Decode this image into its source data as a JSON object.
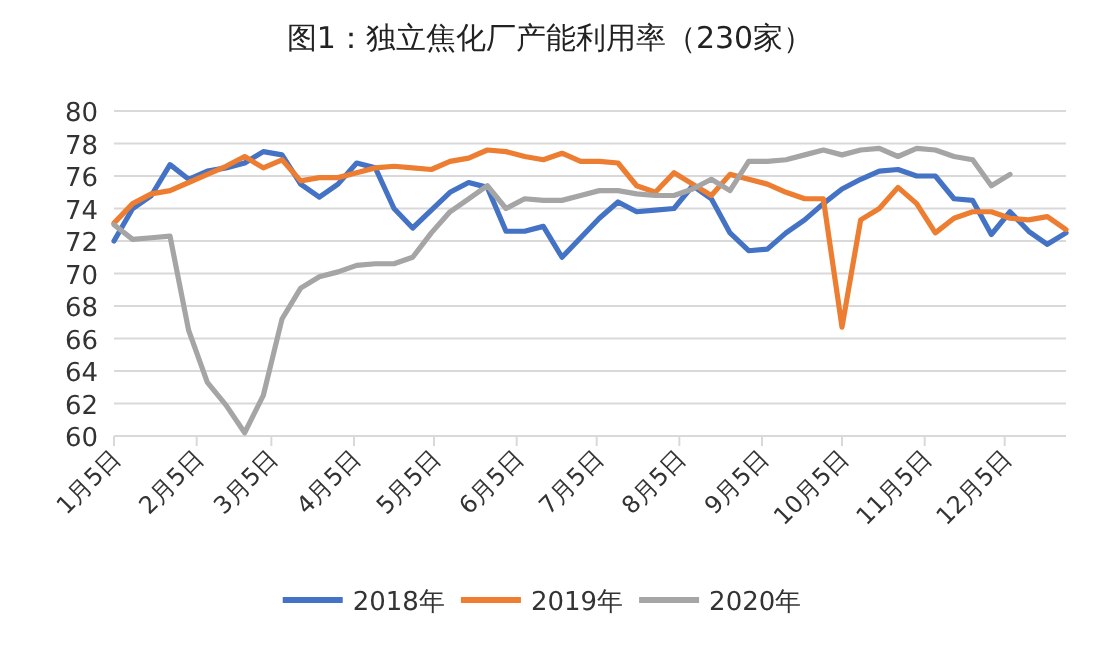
{
  "chart_data": {
    "type": "line",
    "title": "图1：独立焦化厂产能利用率（230家）",
    "x": [
      "--01-05",
      "--01-12",
      "--01-19",
      "--01-26",
      "--02-02",
      "--02-09",
      "--02-16",
      "--02-23",
      "--03-02",
      "--03-09",
      "--03-16",
      "--03-23",
      "--03-30",
      "--04-06",
      "--04-13",
      "--04-20",
      "--04-27",
      "--05-04",
      "--05-11",
      "--05-18",
      "--05-25",
      "--06-01",
      "--06-08",
      "--06-15",
      "--06-22",
      "--06-29",
      "--07-06",
      "--07-13",
      "--07-20",
      "--07-27",
      "--08-03",
      "--08-10",
      "--08-17",
      "--08-24",
      "--08-31",
      "--09-07",
      "--09-14",
      "--09-21",
      "--09-28",
      "--10-05",
      "--10-12",
      "--10-19",
      "--10-26",
      "--11-02",
      "--11-09",
      "--11-16",
      "--11-23",
      "--11-30",
      "--12-07",
      "--12-14",
      "--12-21",
      "--12-28"
    ],
    "series": [
      {
        "name": "2018年",
        "color": "#4472c4",
        "values": [
          72,
          74,
          74.8,
          76.7,
          75.8,
          76.3,
          76.5,
          76.8,
          77.5,
          77.3,
          75.5,
          74.7,
          75.5,
          76.8,
          76.5,
          74,
          72.8,
          73.9,
          75,
          75.6,
          75.3,
          72.6,
          72.6,
          72.9,
          71,
          72.2,
          73.4,
          74.4,
          73.8,
          73.9,
          74,
          75.4,
          74.6,
          72.5,
          71.4,
          71.5,
          72.5,
          73.3,
          74.3,
          75.2,
          75.8,
          76.3,
          76.4,
          76,
          76,
          74.6,
          74.5,
          72.4,
          73.8,
          72.6,
          71.8,
          72.5
        ]
      },
      {
        "name": "2019年",
        "color": "#ed7d31",
        "values": [
          73.1,
          74.3,
          74.9,
          75.1,
          75.6,
          76.1,
          76.6,
          77.2,
          76.5,
          77,
          75.7,
          75.9,
          75.9,
          76.2,
          76.5,
          76.6,
          76.5,
          76.4,
          76.9,
          77.1,
          77.6,
          77.5,
          77.2,
          77,
          77.4,
          76.9,
          76.9,
          76.8,
          75.4,
          75,
          76.2,
          75.5,
          74.8,
          76.1,
          75.8,
          75.5,
          75,
          74.6,
          74.6,
          66.7,
          73.3,
          74,
          75.3,
          74.3,
          72.5,
          73.4,
          73.8,
          73.8,
          73.4,
          73.3,
          73.5,
          72.7
        ]
      },
      {
        "name": "2020年",
        "color": "#a5a5a5",
        "values": [
          73,
          72.1,
          72.2,
          72.3,
          66.5,
          63.3,
          61.9,
          60.2,
          62.5,
          67.2,
          69.1,
          69.8,
          70.1,
          70.5,
          70.6,
          70.6,
          71,
          72.5,
          73.8,
          74.6,
          75.4,
          74,
          74.6,
          74.5,
          74.5,
          74.8,
          75.1,
          75.1,
          74.9,
          74.8,
          74.8,
          75.2,
          75.8,
          75.1,
          76.9,
          76.9,
          77,
          77.3,
          77.6,
          77.3,
          77.6,
          77.7,
          77.2,
          77.7,
          77.6,
          77.2,
          77,
          75.4,
          76.1,
          null,
          null,
          null
        ]
      }
    ],
    "xlim": [
      "--01-05",
      "--12-28"
    ],
    "xticks": [
      {
        "value": "--01-05",
        "label": "1月5日"
      },
      {
        "value": "--02-05",
        "label": "2月5日"
      },
      {
        "value": "--03-05",
        "label": "3月5日"
      },
      {
        "value": "--04-05",
        "label": "4月5日"
      },
      {
        "value": "--05-05",
        "label": "5月5日"
      },
      {
        "value": "--06-05",
        "label": "6月5日"
      },
      {
        "value": "--07-05",
        "label": "7月5日"
      },
      {
        "value": "--08-05",
        "label": "8月5日"
      },
      {
        "value": "--09-05",
        "label": "9月5日"
      },
      {
        "value": "--10-05",
        "label": "10月5日"
      },
      {
        "value": "--11-05",
        "label": "11月5日"
      },
      {
        "value": "--12-05",
        "label": "12月5日"
      }
    ],
    "ylim": [
      60,
      80
    ],
    "yticks": [
      60,
      62,
      64,
      66,
      68,
      70,
      72,
      74,
      76,
      78,
      80
    ],
    "grid": "y",
    "legend": "bottom",
    "marker": "none",
    "line_style": "solid"
  }
}
